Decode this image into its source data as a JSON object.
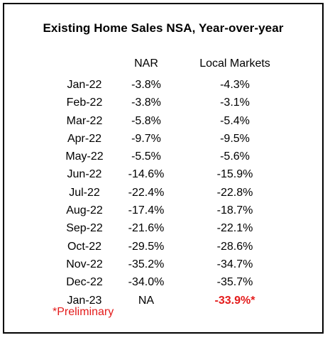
{
  "title": "Existing Home Sales NSA, Year-over-year",
  "columns": {
    "nar": "NAR",
    "local": "Local Markets"
  },
  "rows": [
    {
      "month": "Jan-22",
      "nar": "-3.8%",
      "local": "-4.3%"
    },
    {
      "month": "Feb-22",
      "nar": "-3.8%",
      "local": "-3.1%"
    },
    {
      "month": "Mar-22",
      "nar": "-5.8%",
      "local": "-5.4%"
    },
    {
      "month": "Apr-22",
      "nar": "-9.7%",
      "local": "-9.5%"
    },
    {
      "month": "May-22",
      "nar": "-5.5%",
      "local": "-5.6%"
    },
    {
      "month": "Jun-22",
      "nar": "-14.6%",
      "local": "-15.9%"
    },
    {
      "month": "Jul-22",
      "nar": "-22.4%",
      "local": "-22.8%"
    },
    {
      "month": "Aug-22",
      "nar": "-17.4%",
      "local": "-18.7%"
    },
    {
      "month": "Sep-22",
      "nar": "-21.6%",
      "local": "-22.1%"
    },
    {
      "month": "Oct-22",
      "nar": "-29.5%",
      "local": "-28.6%"
    },
    {
      "month": "Nov-22",
      "nar": "-35.2%",
      "local": "-34.7%"
    },
    {
      "month": "Dec-22",
      "nar": "-34.0%",
      "local": "-35.7%"
    },
    {
      "month": "Jan-23",
      "nar": "NA",
      "local": "-33.9%*"
    }
  ],
  "footnote": "*Preliminary",
  "colors": {
    "highlight": "#e41b1b",
    "text": "#000000",
    "border": "#000000",
    "background": "#ffffff"
  }
}
